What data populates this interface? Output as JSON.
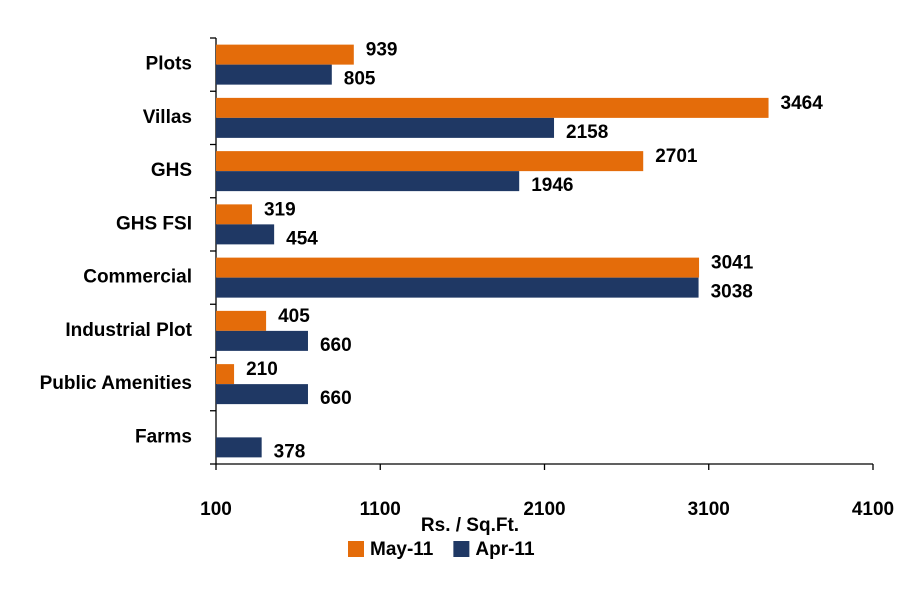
{
  "chart_data": {
    "type": "hbar",
    "categories": [
      "Plots",
      "Villas",
      "GHS",
      "GHS FSI",
      "Commercial",
      "Industrial Plot",
      "Public Amenities",
      "Farms"
    ],
    "series": [
      {
        "name": "May-11",
        "color": "#e46c0a",
        "values": [
          939,
          3464,
          2701,
          319,
          3041,
          405,
          210,
          null
        ]
      },
      {
        "name": "Apr-11",
        "color": "#1f3864",
        "values": [
          805,
          2158,
          1946,
          454,
          3038,
          660,
          660,
          378
        ]
      }
    ],
    "xlim": [
      100,
      4100
    ],
    "xticks": [
      100,
      1100,
      2100,
      3100,
      4100
    ],
    "xlabel": "Rs. / Sq.Ft.",
    "legend": "bottom"
  }
}
